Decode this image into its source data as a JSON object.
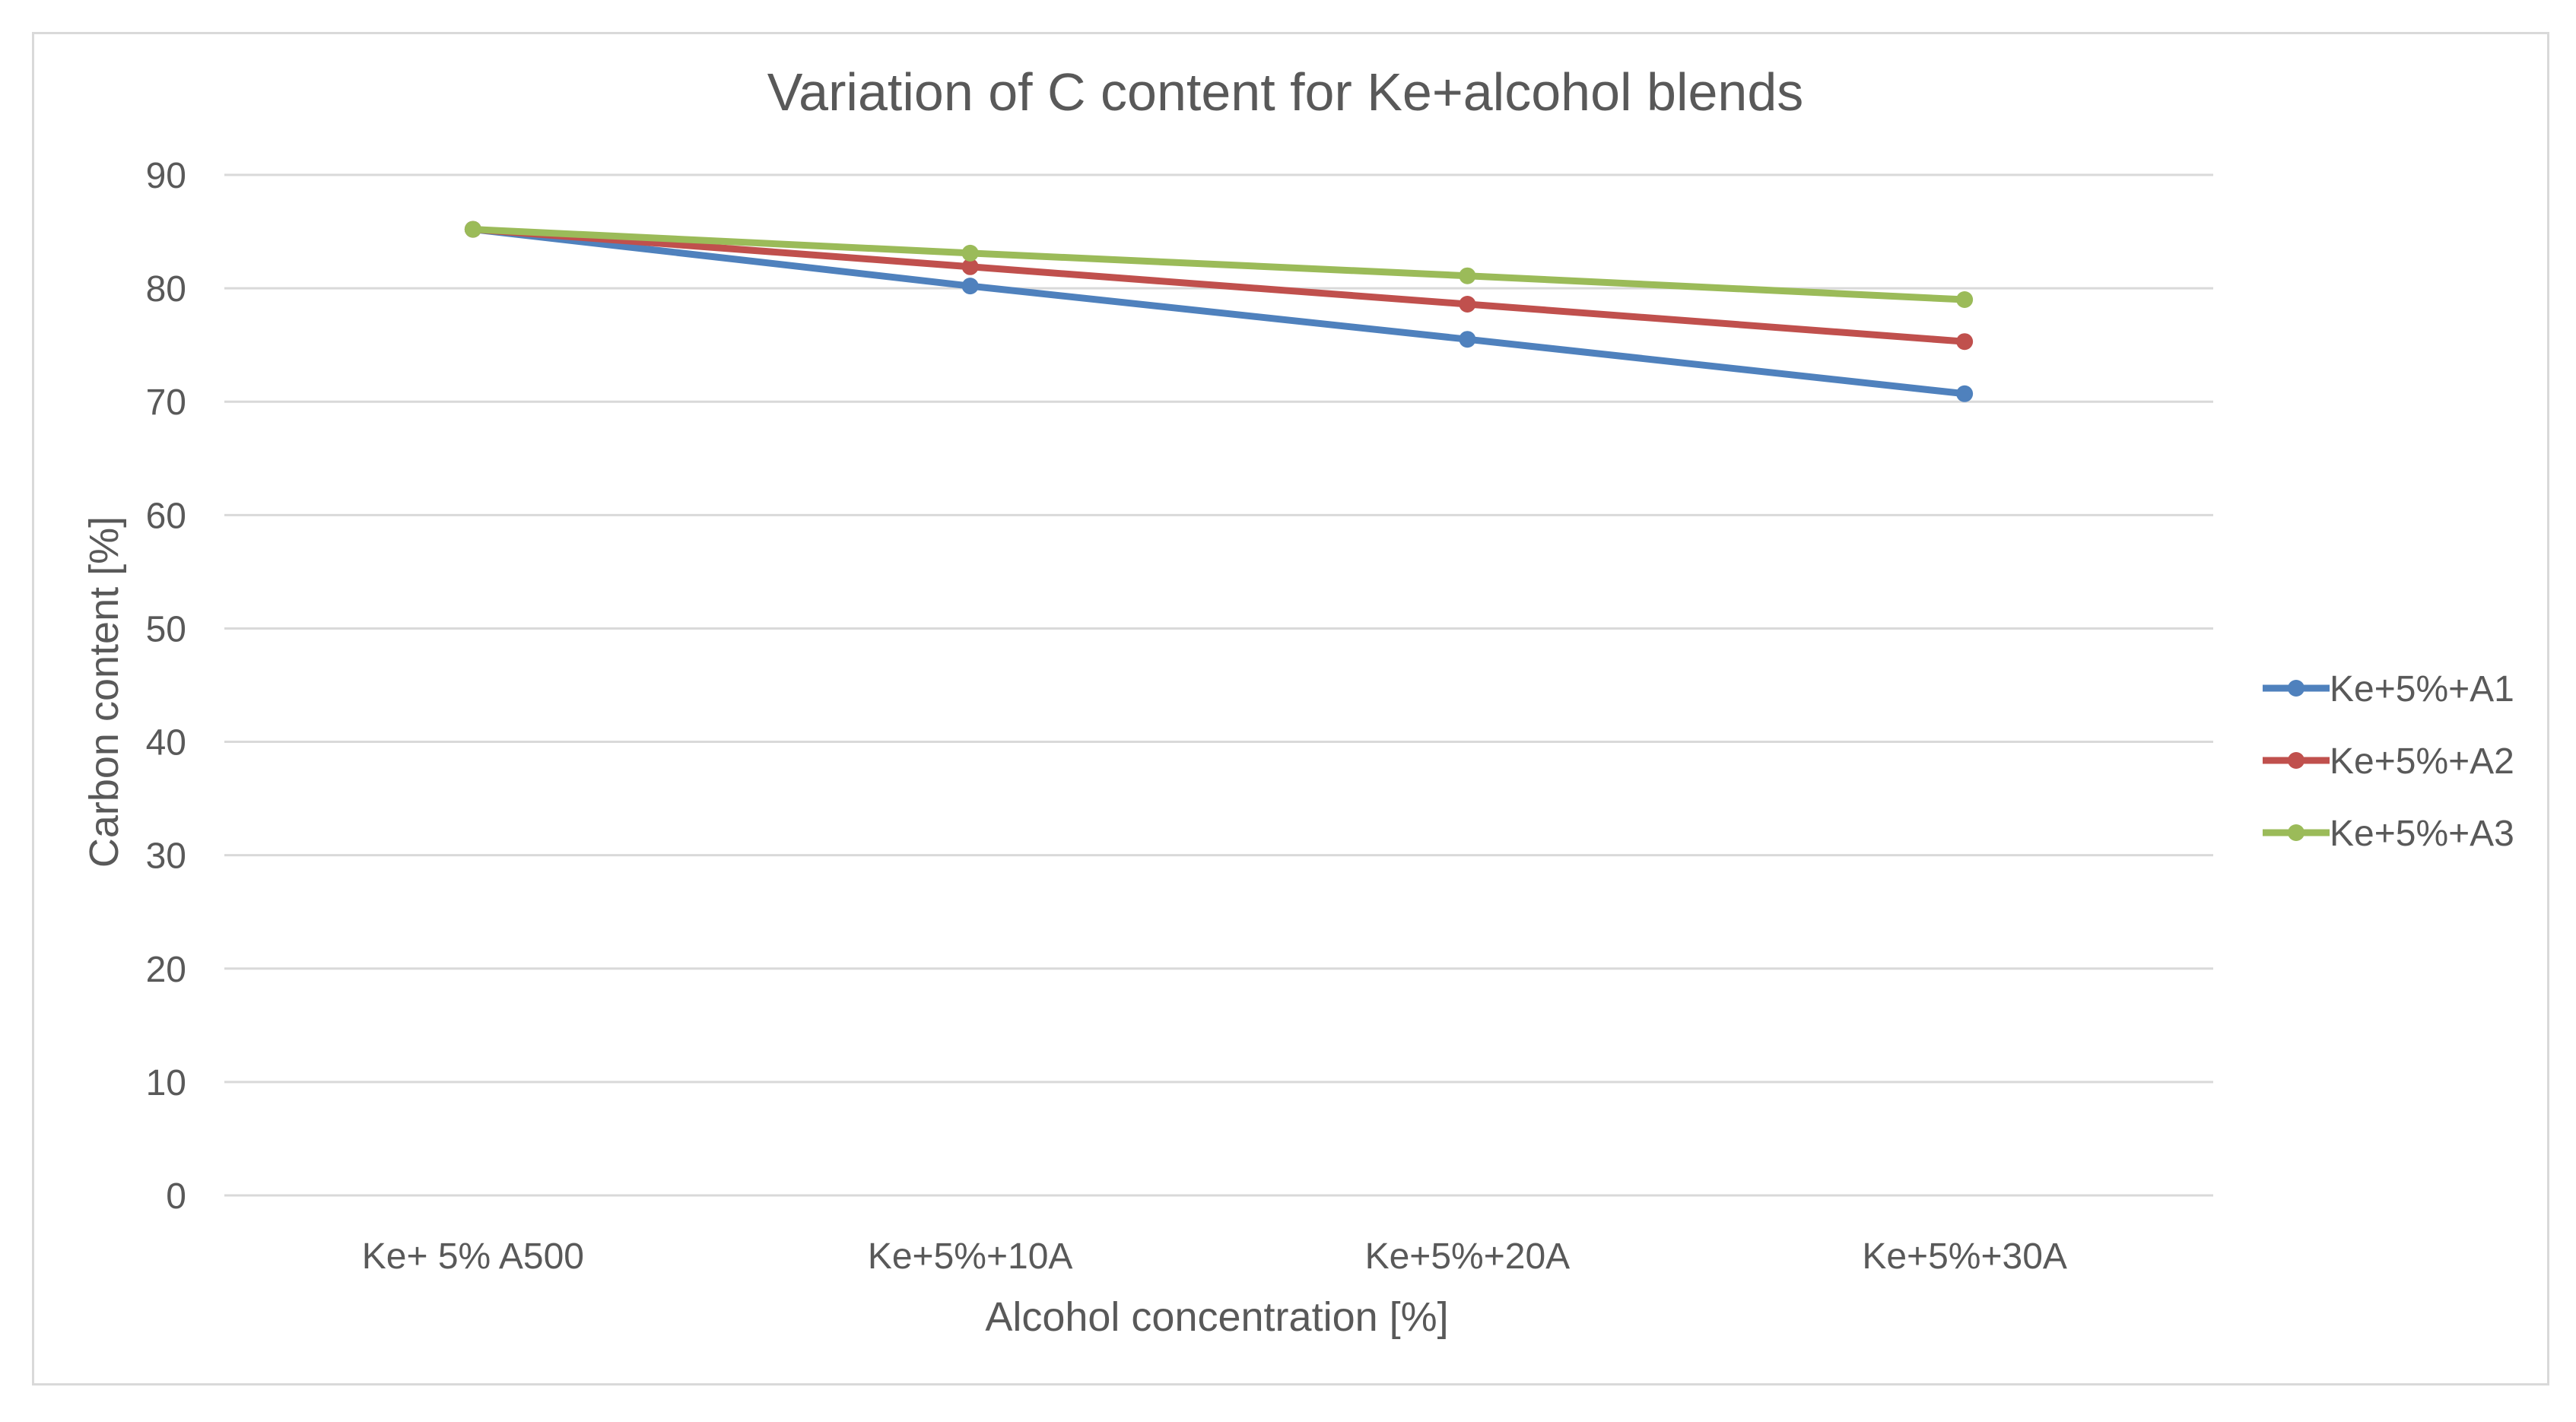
{
  "chart_data": {
    "type": "line",
    "title": "Variation of C content for Ke+alcohol blends",
    "xlabel": "Alcohol concentration [%]",
    "ylabel": "Carbon content [%]",
    "categories": [
      "Ke+ 5% A500",
      "Ke+5%+10A",
      "Ke+5%+20A",
      "Ke+5%+30A"
    ],
    "ylim": [
      0,
      90
    ],
    "yticks": [
      0,
      10,
      20,
      30,
      40,
      50,
      60,
      70,
      80,
      90
    ],
    "grid": true,
    "legend_position": "right",
    "series": [
      {
        "name": "Ke+5%+A1",
        "color": "#4f81bd",
        "values": [
          85.2,
          80.2,
          75.5,
          70.7
        ]
      },
      {
        "name": "Ke+5%+A2",
        "color": "#c0504d",
        "values": [
          85.2,
          81.9,
          78.6,
          75.3
        ]
      },
      {
        "name": "Ke+5%+A3",
        "color": "#9bbb59",
        "values": [
          85.2,
          83.1,
          81.1,
          79.0
        ]
      }
    ]
  }
}
